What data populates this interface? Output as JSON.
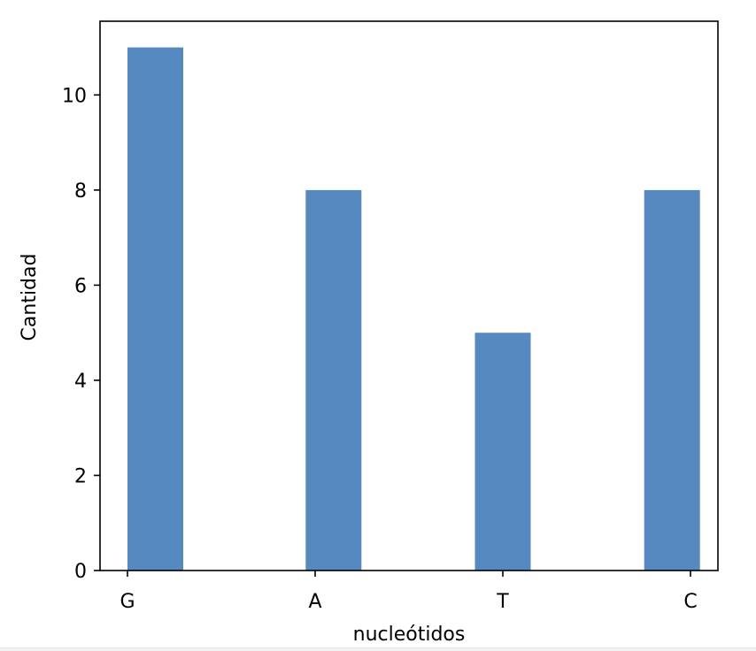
{
  "chart_data": {
    "type": "bar",
    "title": "",
    "xlabel": "nucleótidos",
    "ylabel": "Cantidad",
    "categories": [
      "G",
      "A",
      "T",
      "C"
    ],
    "values": [
      11,
      8,
      5,
      8
    ],
    "ylim": [
      0,
      11.55
    ],
    "yticks": [
      0,
      2,
      4,
      6,
      8,
      10
    ],
    "grid": false,
    "legend": "none",
    "bar_color": "#5589bf"
  }
}
